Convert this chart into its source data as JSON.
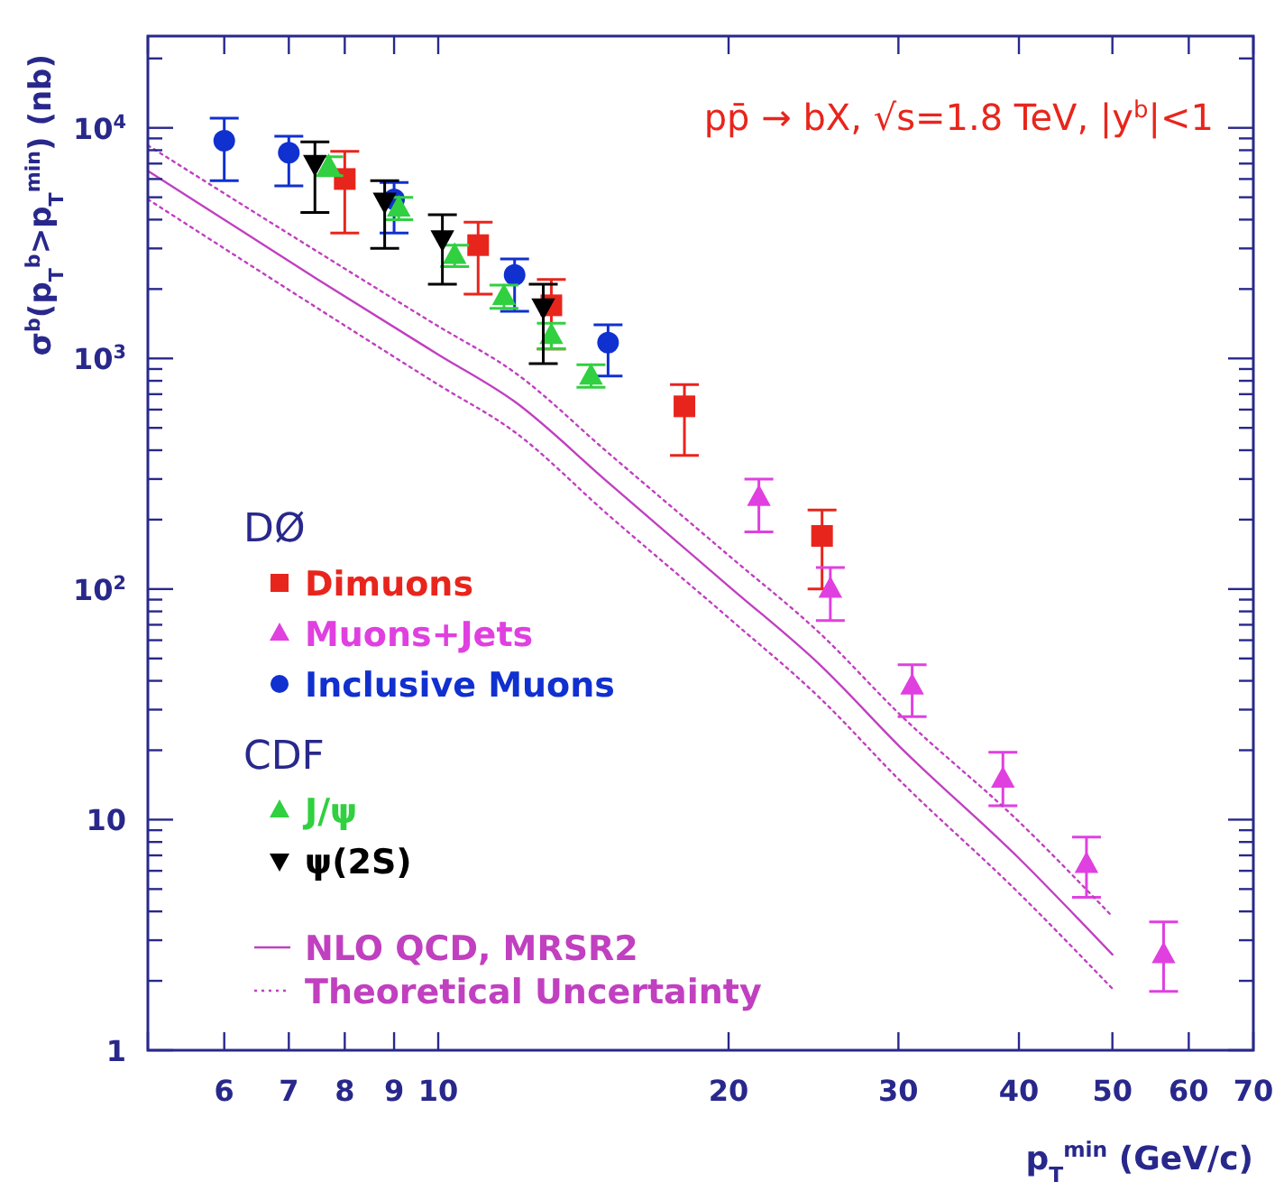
{
  "chart_data": {
    "type": "scatter",
    "xlabel": "p$_{T}$$^{min}$ (GeV/c)",
    "ylabel": "σ$^{b}$(p$_{T}$$^{b}$>p$_{T}$$^{min}$) (nb)",
    "annotations": [
      "pp̄ → bX,  √s=1.8 TeV,  |y$^{b}$|<1",
      "DØ",
      "CDF"
    ],
    "log": "xy",
    "legend": "left",
    "xlim": [
      5,
      70
    ],
    "ylim": [
      1,
      25000
    ],
    "xticks": [
      {
        "value": 5,
        "label": null
      },
      6,
      7,
      8,
      9,
      10,
      20,
      30,
      40,
      50,
      60,
      70
    ],
    "yticks": [
      1,
      {
        "value": 2,
        "label": null
      },
      {
        "value": 3,
        "label": null
      },
      {
        "value": 4,
        "label": null
      },
      {
        "value": 5,
        "label": null
      },
      {
        "value": 6,
        "label": null
      },
      {
        "value": 7,
        "label": null
      },
      {
        "value": 8,
        "label": null
      },
      {
        "value": 9,
        "label": null
      },
      10,
      {
        "value": 20,
        "label": null
      },
      {
        "value": 30,
        "label": null
      },
      {
        "value": 40,
        "label": null
      },
      {
        "value": 50,
        "label": null
      },
      {
        "value": 60,
        "label": null
      },
      {
        "value": 70,
        "label": null
      },
      {
        "value": 80,
        "label": null
      },
      {
        "value": 90,
        "label": null
      },
      {
        "value": 100,
        "label": "10$^{2}$"
      },
      {
        "value": 200,
        "label": null
      },
      {
        "value": 300,
        "label": null
      },
      {
        "value": 400,
        "label": null
      },
      {
        "value": 500,
        "label": null
      },
      {
        "value": 600,
        "label": null
      },
      {
        "value": 700,
        "label": null
      },
      {
        "value": 800,
        "label": null
      },
      {
        "value": 900,
        "label": null
      },
      {
        "value": 1000,
        "label": "10$^{3}$"
      },
      {
        "value": 2000,
        "label": null
      },
      {
        "value": 3000,
        "label": null
      },
      {
        "value": 4000,
        "label": null
      },
      {
        "value": 5000,
        "label": null
      },
      {
        "value": 6000,
        "label": null
      },
      {
        "value": 7000,
        "label": null
      },
      {
        "value": 8000,
        "label": null
      },
      {
        "value": 9000,
        "label": null
      },
      {
        "value": 10000,
        "label": "10$^{4}$"
      },
      {
        "value": 20000,
        "label": null
      }
    ],
    "series": [
      {
        "name": "Dimuons",
        "marker": "square",
        "color": "#e8251c",
        "x": [
          8,
          11,
          13.1,
          18,
          25
        ],
        "values": [
          6000,
          3100,
          1700,
          620,
          170
        ],
        "errors": [
          [
            3500,
            7900
          ],
          [
            1900,
            3900
          ],
          [
            1100,
            2200
          ],
          [
            380,
            770
          ],
          [
            100,
            220
          ]
        ]
      },
      {
        "name": "Muons+Jets",
        "marker": "triangle",
        "color": "#e040e0",
        "x": [
          21.5,
          25.5,
          31,
          38.5,
          47,
          56.5
        ],
        "values": [
          250,
          100,
          38,
          15,
          6.4,
          2.6
        ],
        "errors": [
          [
            177,
            300
          ],
          [
            73,
            124
          ],
          [
            28,
            47
          ],
          [
            11.5,
            19.6
          ],
          [
            4.6,
            8.4
          ],
          [
            1.8,
            3.6
          ]
        ]
      },
      {
        "name": "Inclusive Muons",
        "marker": "circle",
        "color": "#1030d0",
        "x": [
          6,
          7,
          9,
          12,
          15
        ],
        "values": [
          8800,
          7800,
          4900,
          2300,
          1170
        ],
        "errors": [
          [
            5900,
            11000
          ],
          [
            5600,
            9200
          ],
          [
            3500,
            5800
          ],
          [
            1600,
            2700
          ],
          [
            840,
            1400
          ]
        ]
      },
      {
        "name": "J/ψ",
        "marker": "triangle",
        "color": "#30d040",
        "x": [
          7.7,
          9.1,
          10.4,
          11.7,
          13.1,
          14.4
        ],
        "values": [
          6800,
          4500,
          2800,
          1860,
          1260,
          840
        ],
        "errors": [
          [
            6200,
            7500
          ],
          [
            4000,
            5000
          ],
          [
            2500,
            3100
          ],
          [
            1650,
            2080
          ],
          [
            1100,
            1420
          ],
          [
            750,
            940
          ]
        ]
      },
      {
        "name": "ψ(2S)",
        "marker": "triangle-down",
        "color": "#000000",
        "x": [
          7.45,
          8.8,
          10.1,
          12.85
        ],
        "values": [
          7000,
          4800,
          3300,
          1670
        ],
        "errors": [
          [
            4300,
            8700
          ],
          [
            3000,
            5900
          ],
          [
            2100,
            4200
          ],
          [
            950,
            2100
          ]
        ]
      },
      {
        "name": "NLO QCD, MRSR2",
        "type": "line",
        "line_style": "solid",
        "color": "#c040c0",
        "x": [
          5,
          6,
          7.5,
          10,
          12,
          15,
          20,
          25,
          30,
          40,
          50
        ],
        "values": [
          6500,
          4000,
          2200,
          1040,
          650,
          290,
          103,
          46,
          21,
          6.8,
          2.6
        ]
      },
      {
        "name": "Theoretical Uncertainty",
        "type": "line",
        "line_style": "dotted",
        "color": "#c040c0",
        "x": [
          5,
          6,
          7.5,
          10,
          12,
          15,
          20,
          25,
          30,
          40,
          50
        ],
        "values": [
          8400,
          5200,
          2900,
          1380,
          870,
          390,
          140,
          63,
          29,
          9.8,
          3.8
        ]
      },
      {
        "type": "line",
        "line_style": "dotted",
        "color": "#c040c0",
        "x": [
          5,
          6,
          7.5,
          10,
          12,
          15,
          20,
          25,
          30,
          40,
          50
        ],
        "values": [
          4900,
          3000,
          1650,
          770,
          480,
          210,
          75,
          33,
          15,
          4.8,
          1.85
        ]
      }
    ]
  }
}
